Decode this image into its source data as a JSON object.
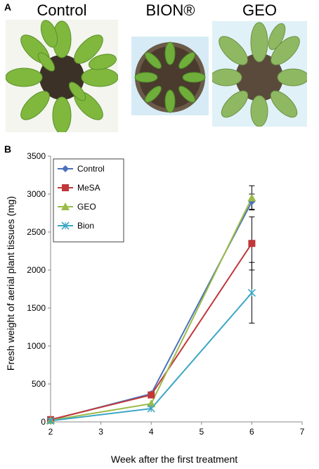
{
  "panel_a": {
    "letter": "A",
    "labels": [
      "Control",
      "BION®",
      "GEO"
    ]
  },
  "panel_b": {
    "letter": "B"
  },
  "chart_data": {
    "type": "line",
    "xlabel": "Week  after the first treatment",
    "ylabel": "Fresh weight of aerial plant tissues (mg)",
    "x": [
      2,
      4,
      6
    ],
    "xlim": [
      2,
      7
    ],
    "xticks": [
      2,
      3,
      4,
      5,
      6,
      7
    ],
    "ylim": [
      0,
      3500
    ],
    "yticks": [
      0,
      500,
      1000,
      1500,
      2000,
      2500,
      3000,
      3500
    ],
    "grid": false,
    "legend_position": "top-left",
    "series": [
      {
        "name": "Control",
        "values": [
          25,
          370,
          2900
        ],
        "error": [
          0,
          0,
          100
        ],
        "color": "#4a72b8",
        "marker": "diamond"
      },
      {
        "name": "MeSA",
        "values": [
          30,
          355,
          2350
        ],
        "error": [
          0,
          0,
          350
        ],
        "color": "#c0383a",
        "marker": "square"
      },
      {
        "name": "GEO",
        "values": [
          20,
          240,
          2950
        ],
        "error": [
          0,
          0,
          160
        ],
        "color": "#9bbb48",
        "marker": "triangle"
      },
      {
        "name": "Bion",
        "values": [
          15,
          175,
          1700
        ],
        "error": [
          0,
          0,
          400
        ],
        "color": "#3aa6c4",
        "marker": "x"
      }
    ]
  }
}
